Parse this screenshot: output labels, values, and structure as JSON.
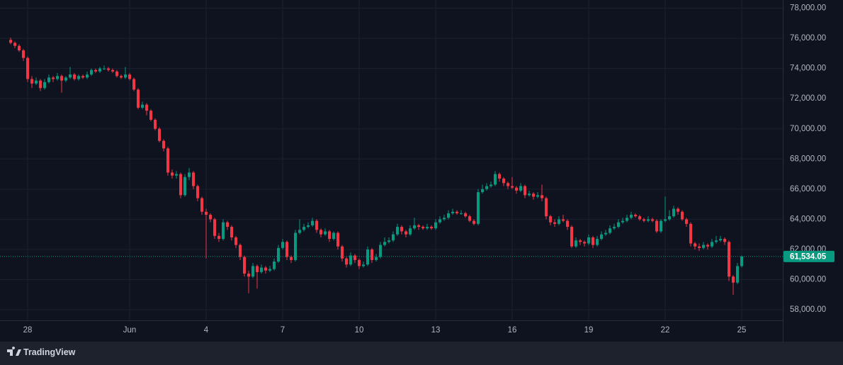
{
  "chart_data": {
    "type": "candlestick",
    "up_color": "#089981",
    "down_color": "#f23645",
    "grid": true,
    "ylim": [
      57300,
      78540
    ],
    "yticks": [
      {
        "value": 58000,
        "label": "58,000.00"
      },
      {
        "value": 60000,
        "label": "60,000.00"
      },
      {
        "value": 62000,
        "label": "62,000.00"
      },
      {
        "value": 64000,
        "label": "64,000.00"
      },
      {
        "value": 66000,
        "label": "66,000.00"
      },
      {
        "value": 68000,
        "label": "68,000.00"
      },
      {
        "value": 70000,
        "label": "70,000.00"
      },
      {
        "value": 72000,
        "label": "72,000.00"
      },
      {
        "value": 74000,
        "label": "74,000.00"
      },
      {
        "value": 76000,
        "label": "76,000.00"
      },
      {
        "value": 78000,
        "label": "78,000.00"
      }
    ],
    "last_price": 61534.05,
    "last_price_label": "61,534.05",
    "categories": [
      null,
      null,
      null,
      null,
      "28",
      null,
      null,
      null,
      null,
      null,
      null,
      null,
      null,
      null,
      null,
      null,
      null,
      null,
      null,
      null,
      null,
      null,
      null,
      null,
      null,
      null,
      null,
      null,
      "Jun",
      null,
      null,
      null,
      null,
      null,
      null,
      null,
      null,
      null,
      null,
      null,
      null,
      null,
      null,
      null,
      null,
      null,
      "4",
      null,
      null,
      null,
      null,
      null,
      null,
      null,
      null,
      null,
      null,
      null,
      null,
      null,
      null,
      null,
      null,
      null,
      "7",
      null,
      null,
      null,
      null,
      null,
      null,
      null,
      null,
      null,
      null,
      null,
      null,
      null,
      null,
      null,
      null,
      null,
      "10",
      null,
      null,
      null,
      null,
      null,
      null,
      null,
      null,
      null,
      null,
      null,
      null,
      null,
      null,
      null,
      null,
      null,
      "13",
      null,
      null,
      null,
      null,
      null,
      null,
      null,
      null,
      null,
      null,
      null,
      null,
      null,
      null,
      null,
      null,
      null,
      "16",
      null,
      null,
      null,
      null,
      null,
      null,
      null,
      null,
      null,
      null,
      null,
      null,
      null,
      null,
      null,
      null,
      null,
      "19",
      null,
      null,
      null,
      null,
      null,
      null,
      null,
      null,
      null,
      null,
      null,
      null,
      null,
      null,
      null,
      null,
      null,
      "22",
      null,
      null,
      null,
      null,
      null,
      null,
      null,
      null,
      null,
      null,
      null,
      null,
      null,
      null,
      null,
      null,
      null,
      "25"
    ],
    "candles": [
      [
        75900,
        76050,
        75600,
        75700
      ],
      [
        75700,
        75800,
        75350,
        75500
      ],
      [
        75500,
        75600,
        75100,
        75200
      ],
      [
        75200,
        75300,
        74500,
        74700
      ],
      [
        74700,
        74800,
        73100,
        73300
      ],
      [
        73300,
        73500,
        72700,
        73000
      ],
      [
        73000,
        73400,
        72900,
        73200
      ],
      [
        73200,
        73300,
        72500,
        72700
      ],
      [
        72700,
        73300,
        72600,
        73100
      ],
      [
        73100,
        73600,
        73000,
        73400
      ],
      [
        73400,
        73500,
        73100,
        73300
      ],
      [
        73300,
        73700,
        73200,
        73500
      ],
      [
        73500,
        73600,
        72400,
        73200
      ],
      [
        73200,
        73500,
        73100,
        73400
      ],
      [
        73400,
        74100,
        73300,
        73600
      ],
      [
        73600,
        73700,
        73200,
        73300
      ],
      [
        73300,
        73600,
        73200,
        73500
      ],
      [
        73500,
        73600,
        73300,
        73400
      ],
      [
        73400,
        73800,
        73300,
        73600
      ],
      [
        73600,
        74000,
        73500,
        73900
      ],
      [
        73900,
        74000,
        73700,
        73800
      ],
      [
        73800,
        74100,
        73700,
        74000
      ],
      [
        74000,
        74200,
        73900,
        74000
      ],
      [
        74000,
        74100,
        73800,
        73900
      ],
      [
        73900,
        74000,
        73700,
        73800
      ],
      [
        73800,
        73900,
        73400,
        73500
      ],
      [
        73500,
        73600,
        73300,
        73400
      ],
      [
        73400,
        74100,
        73300,
        73600
      ],
      [
        73600,
        73700,
        73200,
        73300
      ],
      [
        73300,
        73400,
        72500,
        72600
      ],
      [
        72600,
        72700,
        71300,
        71400
      ],
      [
        71400,
        71800,
        71300,
        71600
      ],
      [
        71600,
        71700,
        70900,
        71200
      ],
      [
        71200,
        71300,
        70500,
        70600
      ],
      [
        70600,
        70700,
        69900,
        70000
      ],
      [
        70000,
        70100,
        69100,
        69200
      ],
      [
        69200,
        69300,
        68500,
        68700
      ],
      [
        68700,
        68800,
        66900,
        67100
      ],
      [
        67100,
        67300,
        66700,
        66900
      ],
      [
        66900,
        67200,
        66700,
        67000
      ],
      [
        67000,
        67100,
        65400,
        65600
      ],
      [
        65600,
        67000,
        65500,
        66800
      ],
      [
        66800,
        67400,
        66600,
        67100
      ],
      [
        67100,
        67200,
        66000,
        66200
      ],
      [
        66200,
        66300,
        65200,
        65400
      ],
      [
        65400,
        65500,
        64300,
        64500
      ],
      [
        64500,
        64700,
        61400,
        64300
      ],
      [
        64300,
        64400,
        63800,
        64000
      ],
      [
        64000,
        64100,
        62700,
        62900
      ],
      [
        62900,
        63100,
        62500,
        62700
      ],
      [
        62700,
        64000,
        62600,
        63800
      ],
      [
        63800,
        63900,
        63300,
        63500
      ],
      [
        63500,
        63600,
        62600,
        62800
      ],
      [
        62800,
        62900,
        62100,
        62300
      ],
      [
        62300,
        62400,
        61300,
        61500
      ],
      [
        61500,
        61600,
        60200,
        60400
      ],
      [
        60400,
        60600,
        59100,
        60200
      ],
      [
        60200,
        61100,
        60100,
        60900
      ],
      [
        60900,
        61000,
        59400,
        60500
      ],
      [
        60500,
        61000,
        60400,
        60800
      ],
      [
        60800,
        60900,
        60400,
        60600
      ],
      [
        60600,
        60900,
        60500,
        60700
      ],
      [
        60700,
        61400,
        60600,
        61200
      ],
      [
        61200,
        62300,
        61100,
        62100
      ],
      [
        62100,
        62700,
        62000,
        62500
      ],
      [
        62500,
        62600,
        61300,
        61500
      ],
      [
        61500,
        61600,
        61100,
        61300
      ],
      [
        61300,
        63300,
        61200,
        63100
      ],
      [
        63100,
        64000,
        63000,
        63300
      ],
      [
        63300,
        63700,
        63200,
        63500
      ],
      [
        63500,
        63800,
        63400,
        63600
      ],
      [
        63600,
        64100,
        63500,
        63900
      ],
      [
        63900,
        64000,
        63100,
        63300
      ],
      [
        63300,
        63400,
        62800,
        63000
      ],
      [
        63000,
        63400,
        62900,
        63200
      ],
      [
        63200,
        63300,
        62500,
        62700
      ],
      [
        62700,
        63200,
        62600,
        63100
      ],
      [
        63100,
        63200,
        62000,
        62200
      ],
      [
        62200,
        62300,
        61200,
        61400
      ],
      [
        61400,
        61500,
        60800,
        61000
      ],
      [
        61000,
        61800,
        60900,
        61600
      ],
      [
        61600,
        61700,
        61100,
        61300
      ],
      [
        61300,
        61400,
        60700,
        60900
      ],
      [
        60900,
        61200,
        60800,
        61000
      ],
      [
        61000,
        62200,
        60900,
        62000
      ],
      [
        62000,
        62100,
        61100,
        61300
      ],
      [
        61300,
        61700,
        61200,
        61500
      ],
      [
        61500,
        62500,
        61400,
        62300
      ],
      [
        62300,
        62800,
        62200,
        62500
      ],
      [
        62500,
        62800,
        62400,
        62600
      ],
      [
        62600,
        63200,
        62500,
        63000
      ],
      [
        63000,
        63700,
        62900,
        63500
      ],
      [
        63500,
        63600,
        63000,
        63200
      ],
      [
        63200,
        63300,
        62800,
        63000
      ],
      [
        63000,
        63600,
        62900,
        63400
      ],
      [
        63400,
        64100,
        63300,
        63600
      ],
      [
        63600,
        63700,
        63300,
        63500
      ],
      [
        63500,
        63600,
        63300,
        63400
      ],
      [
        63400,
        63700,
        63300,
        63500
      ],
      [
        63500,
        63600,
        63300,
        63400
      ],
      [
        63400,
        64000,
        63300,
        63800
      ],
      [
        63800,
        64200,
        63700,
        64000
      ],
      [
        64000,
        64300,
        63900,
        64100
      ],
      [
        64100,
        64600,
        64000,
        64400
      ],
      [
        64400,
        64700,
        64300,
        64500
      ],
      [
        64500,
        64600,
        64300,
        64400
      ],
      [
        64400,
        64600,
        64300,
        64400
      ],
      [
        64400,
        64500,
        64100,
        64200
      ],
      [
        64200,
        64300,
        63800,
        63900
      ],
      [
        63900,
        64000,
        63600,
        63700
      ],
      [
        63700,
        66000,
        63600,
        65800
      ],
      [
        65800,
        66300,
        65700,
        66000
      ],
      [
        66000,
        66400,
        65900,
        66200
      ],
      [
        66200,
        66500,
        66100,
        66300
      ],
      [
        66300,
        67200,
        66200,
        67000
      ],
      [
        67000,
        67100,
        66500,
        66700
      ],
      [
        66700,
        66800,
        66200,
        66400
      ],
      [
        66400,
        66500,
        66000,
        66200
      ],
      [
        66200,
        66800,
        66000,
        66100
      ],
      [
        66100,
        66200,
        65700,
        65900
      ],
      [
        65900,
        66400,
        65800,
        66200
      ],
      [
        66200,
        66300,
        65400,
        65600
      ],
      [
        65600,
        65900,
        65500,
        65700
      ],
      [
        65700,
        65800,
        65300,
        65500
      ],
      [
        65500,
        65800,
        65400,
        65600
      ],
      [
        65600,
        66300,
        65200,
        65400
      ],
      [
        65400,
        65500,
        64000,
        64200
      ],
      [
        64200,
        64300,
        63600,
        63800
      ],
      [
        63800,
        64000,
        63500,
        63700
      ],
      [
        63700,
        64200,
        63600,
        64000
      ],
      [
        64000,
        64300,
        63800,
        63900
      ],
      [
        63900,
        64000,
        63300,
        63500
      ],
      [
        63500,
        63600,
        62100,
        62200
      ],
      [
        62200,
        62800,
        62100,
        62600
      ],
      [
        62600,
        62700,
        62300,
        62500
      ],
      [
        62500,
        62600,
        62200,
        62400
      ],
      [
        62400,
        63000,
        62300,
        62800
      ],
      [
        62800,
        62900,
        62100,
        62300
      ],
      [
        62300,
        62900,
        62200,
        62700
      ],
      [
        62700,
        63200,
        62600,
        63000
      ],
      [
        63000,
        63300,
        62900,
        63100
      ],
      [
        63100,
        63600,
        63000,
        63400
      ],
      [
        63400,
        63700,
        63300,
        63500
      ],
      [
        63500,
        64000,
        63400,
        63800
      ],
      [
        63800,
        64100,
        63700,
        63900
      ],
      [
        63900,
        64300,
        63800,
        64100
      ],
      [
        64100,
        64500,
        64000,
        64300
      ],
      [
        64300,
        64400,
        64100,
        64200
      ],
      [
        64200,
        64300,
        63900,
        64000
      ],
      [
        64000,
        64100,
        63800,
        63900
      ],
      [
        63900,
        64200,
        63800,
        64000
      ],
      [
        64000,
        64100,
        63800,
        63900
      ],
      [
        63900,
        64000,
        63100,
        63200
      ],
      [
        63200,
        64000,
        63100,
        63900
      ],
      [
        63900,
        65500,
        63800,
        64000
      ],
      [
        64000,
        64600,
        63900,
        64200
      ],
      [
        64200,
        64900,
        64100,
        64700
      ],
      [
        64700,
        64800,
        64300,
        64500
      ],
      [
        64500,
        64600,
        63900,
        64000
      ],
      [
        64000,
        64100,
        63500,
        63700
      ],
      [
        63700,
        63800,
        62200,
        62400
      ],
      [
        62400,
        62500,
        62000,
        62200
      ],
      [
        62200,
        62400,
        61900,
        62100
      ],
      [
        62100,
        62500,
        62000,
        62300
      ],
      [
        62300,
        62400,
        62000,
        62200
      ],
      [
        62200,
        62700,
        62100,
        62500
      ],
      [
        62500,
        62900,
        62400,
        62600
      ],
      [
        62600,
        62900,
        62500,
        62700
      ],
      [
        62700,
        62800,
        62300,
        62500
      ],
      [
        62500,
        62600,
        59900,
        60200
      ],
      [
        60200,
        60300,
        59000,
        59800
      ],
      [
        59800,
        61100,
        59700,
        60900
      ],
      [
        60900,
        61600,
        60800,
        61534.05
      ]
    ]
  },
  "footer": {
    "brand": "TradingView"
  }
}
